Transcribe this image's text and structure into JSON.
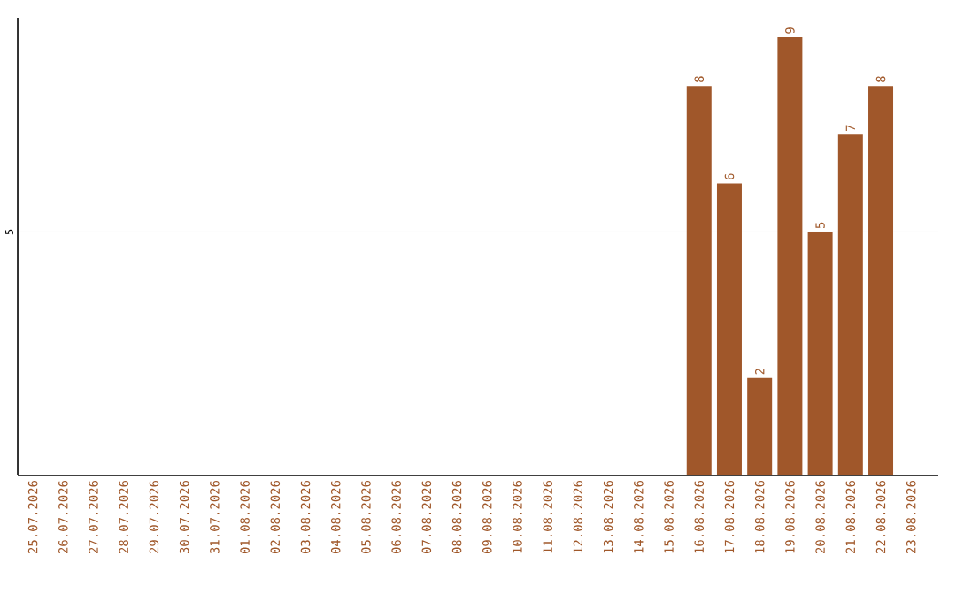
{
  "chart_data": {
    "type": "bar",
    "categories": [
      "25.07.2026",
      "26.07.2026",
      "27.07.2026",
      "28.07.2026",
      "29.07.2026",
      "30.07.2026",
      "31.07.2026",
      "01.08.2026",
      "02.08.2026",
      "03.08.2026",
      "04.08.2026",
      "05.08.2026",
      "06.08.2026",
      "07.08.2026",
      "08.08.2026",
      "09.08.2026",
      "10.08.2026",
      "11.08.2026",
      "12.08.2026",
      "13.08.2026",
      "14.08.2026",
      "15.08.2026",
      "16.08.2026",
      "17.08.2026",
      "18.08.2026",
      "19.08.2026",
      "20.08.2026",
      "21.08.2026",
      "22.08.2026",
      "23.08.2026"
    ],
    "values": [
      null,
      null,
      null,
      null,
      null,
      null,
      null,
      null,
      null,
      null,
      null,
      null,
      null,
      null,
      null,
      null,
      null,
      null,
      null,
      null,
      null,
      null,
      8,
      6,
      2,
      9,
      5,
      7,
      8,
      null
    ],
    "color": "#a0572a",
    "ylim": [
      0,
      9.4
    ],
    "yticks": [
      5
    ],
    "grid": "y",
    "data_labels": true
  }
}
